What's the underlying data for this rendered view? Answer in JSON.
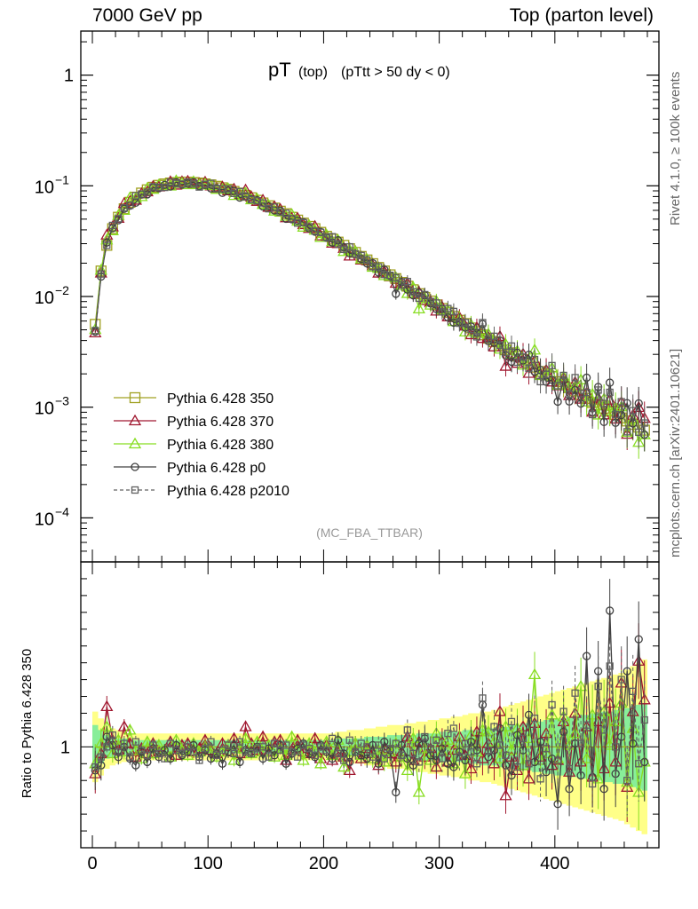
{
  "header": {
    "left": "7000 GeV pp",
    "right": "Top (parton level)"
  },
  "side_labels": {
    "rivet": "Rivet 4.1.0, ≥ 100k events",
    "mcplots": "mcplots.cern.ch [arXiv:2401.10621]"
  },
  "colors": {
    "p350": "#a0a020",
    "p370": "#a01830",
    "p380": "#88dd22",
    "p0": "#404040",
    "p2010": "#606060",
    "band_outer": "#ffff88",
    "band_inner": "#88ee99"
  },
  "chart_data": [
    {
      "type": "line",
      "title": "pT (top) (pTtt > 50 dy < 0)",
      "title_main": "pT",
      "title_sub": "(top)",
      "title_cut": "(pTtt > 50 dy < 0)",
      "watermark": "(MC_FBA_TTBAR)",
      "yscale": "log",
      "xlim": [
        -10,
        490
      ],
      "ylim": [
        4e-05,
        2.5
      ],
      "y_ticks": [
        {
          "value": 1,
          "label": "1"
        },
        {
          "value": 0.1,
          "base": "10",
          "exp": "−1"
        },
        {
          "value": 0.01,
          "base": "10",
          "exp": "−2"
        },
        {
          "value": 0.001,
          "base": "10",
          "exp": "−3"
        },
        {
          "value": 0.0001,
          "base": "10",
          "exp": "−4"
        }
      ],
      "x_ticks": [
        0,
        100,
        200,
        300,
        400
      ],
      "legend_location": "center-left",
      "series": [
        {
          "name": "Pythia 6.428 350",
          "key": "p350",
          "marker": "square-open",
          "line": "solid"
        },
        {
          "name": "Pythia 6.428 370",
          "key": "p370",
          "marker": "triangle-open",
          "line": "solid"
        },
        {
          "name": "Pythia 6.428 380",
          "key": "p380",
          "marker": "triangle-open",
          "line": "solid"
        },
        {
          "name": "Pythia 6.428 p0",
          "key": "p0",
          "marker": "circle-open",
          "line": "solid"
        },
        {
          "name": "Pythia 6.428 p2010",
          "key": "p2010",
          "marker": "square-small-open",
          "line": "dashed"
        }
      ],
      "x": [
        2.5,
        7.5,
        12.5,
        17.5,
        22.5,
        27.5,
        32.5,
        37.5,
        42.5,
        47.5,
        52.5,
        57.5,
        62.5,
        67.5,
        72.5,
        77.5,
        82.5,
        87.5,
        92.5,
        97.5,
        102.5,
        107.5,
        112.5,
        117.5,
        122.5,
        127.5,
        132.5,
        137.5,
        142.5,
        147.5,
        152.5,
        157.5,
        162.5,
        167.5,
        172.5,
        177.5,
        182.5,
        187.5,
        192.5,
        197.5,
        202.5,
        207.5,
        212.5,
        217.5,
        222.5,
        227.5,
        232.5,
        237.5,
        242.5,
        247.5,
        252.5,
        257.5,
        262.5,
        267.5,
        272.5,
        277.5,
        282.5,
        287.5,
        292.5,
        297.5,
        302.5,
        307.5,
        312.5,
        317.5,
        322.5,
        327.5,
        332.5,
        337.5,
        342.5,
        347.5,
        352.5,
        357.5,
        362.5,
        367.5,
        372.5,
        377.5,
        382.5,
        387.5,
        392.5,
        397.5,
        402.5,
        407.5,
        412.5,
        417.5,
        422.5,
        427.5,
        432.5,
        437.5,
        442.5,
        447.5,
        452.5,
        457.5,
        462.5,
        467.5,
        472.5,
        477.5
      ],
      "ref_values": [
        0.0056,
        0.017,
        0.029,
        0.041,
        0.052,
        0.062,
        0.071,
        0.079,
        0.086,
        0.092,
        0.097,
        0.101,
        0.104,
        0.106,
        0.107,
        0.108,
        0.108,
        0.107,
        0.106,
        0.104,
        0.102,
        0.099,
        0.096,
        0.093,
        0.089,
        0.086,
        0.082,
        0.078,
        0.074,
        0.07,
        0.066,
        0.063,
        0.059,
        0.056,
        0.052,
        0.049,
        0.046,
        0.043,
        0.041,
        0.038,
        0.035,
        0.033,
        0.031,
        0.029,
        0.027,
        0.025,
        0.023,
        0.0214,
        0.0198,
        0.0183,
        0.017,
        0.0157,
        0.0145,
        0.0134,
        0.0124,
        0.0115,
        0.0106,
        0.0098,
        0.0091,
        0.0084,
        0.0078,
        0.0072,
        0.0066,
        0.0061,
        0.0057,
        0.0052,
        0.0048,
        0.0045,
        0.0042,
        0.0039,
        0.0036,
        0.0033,
        0.0031,
        0.0029,
        0.0027,
        0.0025,
        0.0023,
        0.0021,
        0.002,
        0.0019,
        0.0017,
        0.0016,
        0.0015,
        0.0014,
        0.0013,
        0.0012,
        0.0011,
        0.00105,
        0.00098,
        0.00092,
        0.00086,
        0.0008,
        0.00075,
        0.0007,
        0.00066,
        0.00062
      ]
    },
    {
      "type": "line",
      "ylabel": "Ratio to Pythia 6.428 350",
      "xlim": [
        -10,
        490
      ],
      "ylim": [
        0.4,
        2.1
      ],
      "y_ticks": [
        {
          "value": 1,
          "label": "1"
        }
      ],
      "x_ticks": [
        0,
        100,
        200,
        300,
        400
      ],
      "series": [
        {
          "name": "Pythia 6.428 350",
          "key": "p350",
          "ratio": [
            1,
            1,
            1,
            1,
            1,
            1,
            1,
            1,
            1,
            1,
            1,
            1,
            1,
            1,
            1,
            1,
            1,
            1,
            1,
            1,
            1,
            1,
            1,
            1,
            1,
            1,
            1,
            1,
            1,
            1,
            1,
            1,
            1,
            1,
            1,
            1,
            1,
            1,
            1,
            1,
            1,
            1,
            1,
            1,
            1,
            1,
            1,
            1,
            1,
            1,
            1,
            1,
            1,
            1,
            1,
            1,
            1,
            1,
            1,
            1,
            1,
            1,
            1,
            1,
            1,
            1,
            1,
            1,
            1,
            1,
            1,
            1,
            1,
            1,
            1,
            1,
            1,
            1,
            1,
            1,
            1,
            1,
            1,
            1,
            1,
            1,
            1,
            1,
            1,
            1,
            1,
            1,
            1,
            1,
            1,
            1
          ],
          "band_outer": [
            0.21,
            0.17,
            0.13,
            0.11,
            0.1,
            0.09,
            0.08,
            0.08,
            0.08,
            0.08,
            0.08,
            0.08,
            0.08,
            0.08,
            0.08,
            0.08,
            0.08,
            0.08,
            0.08,
            0.08,
            0.08,
            0.08,
            0.08,
            0.08,
            0.08,
            0.08,
            0.08,
            0.08,
            0.08,
            0.08,
            0.08,
            0.08,
            0.08,
            0.08,
            0.08,
            0.08,
            0.08,
            0.08,
            0.08,
            0.08,
            0.08,
            0.08,
            0.09,
            0.09,
            0.1,
            0.1,
            0.1,
            0.11,
            0.11,
            0.12,
            0.12,
            0.13,
            0.13,
            0.13,
            0.14,
            0.14,
            0.15,
            0.15,
            0.16,
            0.16,
            0.17,
            0.17,
            0.18,
            0.18,
            0.19,
            0.2,
            0.2,
            0.21,
            0.21,
            0.22,
            0.23,
            0.24,
            0.25,
            0.26,
            0.27,
            0.28,
            0.29,
            0.3,
            0.31,
            0.32,
            0.33,
            0.34,
            0.35,
            0.36,
            0.37,
            0.38,
            0.39,
            0.4,
            0.41,
            0.42,
            0.43,
            0.44,
            0.46,
            0.48,
            0.5,
            0.52
          ],
          "band_inner": [
            0.13,
            0.1,
            0.07,
            0.06,
            0.05,
            0.05,
            0.04,
            0.04,
            0.04,
            0.04,
            0.04,
            0.04,
            0.04,
            0.04,
            0.04,
            0.04,
            0.04,
            0.04,
            0.04,
            0.04,
            0.04,
            0.04,
            0.04,
            0.04,
            0.04,
            0.04,
            0.04,
            0.04,
            0.04,
            0.04,
            0.04,
            0.04,
            0.04,
            0.04,
            0.04,
            0.04,
            0.04,
            0.04,
            0.04,
            0.04,
            0.04,
            0.04,
            0.05,
            0.05,
            0.05,
            0.05,
            0.05,
            0.06,
            0.06,
            0.06,
            0.06,
            0.07,
            0.07,
            0.07,
            0.07,
            0.07,
            0.08,
            0.08,
            0.08,
            0.08,
            0.09,
            0.09,
            0.09,
            0.09,
            0.1,
            0.1,
            0.1,
            0.11,
            0.11,
            0.11,
            0.12,
            0.12,
            0.13,
            0.13,
            0.14,
            0.14,
            0.15,
            0.15,
            0.16,
            0.16,
            0.17,
            0.17,
            0.18,
            0.18,
            0.19,
            0.19,
            0.2,
            0.2,
            0.21,
            0.21,
            0.22,
            0.22,
            0.23,
            0.24,
            0.25,
            0.26
          ]
        },
        {
          "name": "Pythia 6.428 370",
          "key": "p370",
          "ratio": [
            0.84,
            0.96,
            1.24,
            1.04,
            0.98,
            1.12,
            1.02,
            0.94,
            0.99,
            0.96,
            1.02,
            0.97,
            0.98,
            1.03,
            0.95,
            1.01,
            1.02,
            0.97,
            0.99,
            1.04,
            0.98,
            0.96,
            1.02,
            0.97,
            1.05,
            0.96,
            1.12,
            1.02,
            0.98,
            1.06,
            0.97,
            1.03,
            1.04,
            0.92,
            0.98,
            1.04,
            0.97,
            0.96,
            1.05,
            0.93,
            1.01,
            0.92,
            0.97,
            0.94,
            0.86,
            1.02,
            0.93,
            0.99,
            0.96,
            0.89,
            0.99,
            0.96,
            0.91,
            0.97,
            1.06,
            0.92,
            1.03,
            0.94,
            0.99,
            0.88,
            1.03,
            0.91,
            0.98,
            1.06,
            0.95,
            0.87,
            1.09,
            0.93,
            1.02,
            0.9,
            1.21,
            0.71,
            0.94,
            0.86,
            1.12,
            0.81,
            1.14,
            0.94,
            1.08,
            0.89,
            0.92,
            1.15,
            0.85,
            1.2,
            0.91,
            1.12,
            0.82,
            1.15,
            0.87,
            1.26,
            0.91,
            1.38,
            0.76,
            1.21,
            1.51,
            1.28
          ]
        },
        {
          "name": "Pythia 6.428 380",
          "key": "p380",
          "ratio": [
            0.9,
            1.02,
            1.12,
            0.96,
            1.04,
            0.97,
            1.1,
            0.98,
            0.93,
            1.03,
            0.96,
            1.01,
            0.98,
            0.94,
            1.04,
            0.98,
            0.95,
            1.02,
            0.97,
            1.0,
            0.99,
            0.94,
            0.97,
            1.01,
            0.92,
            0.99,
            1.05,
            0.96,
            1.03,
            0.97,
            1.01,
            0.94,
            0.99,
            0.95,
            1.06,
            0.98,
            0.92,
            1.02,
            0.97,
            0.9,
            1.03,
            0.95,
            1.04,
            0.88,
            0.97,
            1.02,
            0.95,
            1.01,
            0.93,
            0.98,
            0.91,
            0.97,
            1.02,
            0.94,
            0.86,
            1.05,
            0.73,
            0.99,
            0.92,
            1.08,
            0.97,
            1.04,
            0.9,
            1.02,
            0.84,
            1.07,
            0.97,
            1.1,
            1.09,
            1.03,
            0.93,
            1.12,
            0.98,
            1.11,
            0.89,
            1.05,
            1.43,
            0.92,
            0.96,
            1.19,
            0.93,
            1.18,
            1.01,
            1.08,
            1.36,
            0.93,
            1.19,
            0.81,
            1.21,
            1.01,
            1.15,
            1.26,
            0.79,
            1.11,
            0.73,
            0.91
          ]
        },
        {
          "name": "Pythia 6.428 p0",
          "key": "p0",
          "ratio": [
            0.86,
            0.89,
            1.06,
            1.01,
            0.94,
            1.0,
            0.93,
            0.89,
            0.97,
            0.91,
            0.99,
            0.94,
            0.98,
            0.93,
            1.01,
            0.95,
            0.97,
            1.01,
            0.94,
            0.98,
            0.93,
            0.96,
            0.9,
            0.97,
            1.01,
            0.91,
            0.98,
            0.97,
            1.0,
            0.93,
            0.99,
            0.95,
            1.01,
            0.9,
            0.96,
            0.99,
            1.02,
            0.96,
            0.94,
            1.01,
            0.97,
            0.93,
            1.04,
            0.96,
            0.91,
            0.97,
            0.95,
            0.93,
            1.01,
            0.9,
            1.03,
            0.98,
            0.73,
            1.01,
            0.93,
            0.89,
            1.02,
            1.05,
            0.95,
            0.92,
            0.99,
            0.9,
            0.88,
            0.97,
            0.92,
            1.03,
            0.98,
            1.25,
            0.94,
            0.98,
            1.11,
            0.89,
            0.83,
            1.07,
            0.98,
            1.19,
            0.91,
            1.03,
            0.85,
            0.93,
            0.66,
            1.09,
            0.75,
            1.02,
            0.83,
            1.54,
            0.82,
            1.45,
            0.75,
            1.81,
            0.84,
            1.06,
            1.45,
            1.02,
            1.64,
            0.91
          ]
        },
        {
          "name": "Pythia 6.428 p2010",
          "key": "p2010",
          "ratio": [
            0.88,
            0.94,
            1.0,
            1.07,
            0.97,
            1.02,
            0.94,
            1.03,
            0.98,
            0.95,
            1.01,
            0.96,
            0.93,
            1.02,
            0.98,
            0.96,
            1.0,
            0.97,
            0.92,
            0.99,
            1.03,
            0.95,
            0.98,
            1.01,
            0.96,
            1.03,
            0.97,
            0.96,
            0.99,
            1.0,
            0.94,
            1.02,
            0.98,
            1.01,
            0.97,
            0.94,
            1.01,
            0.99,
            0.95,
            1.0,
            0.98,
            1.05,
            0.96,
            0.92,
            1.04,
            0.97,
            1.02,
            1.0,
            0.94,
            1.01,
            0.93,
            0.99,
            1.02,
            0.95,
            1.1,
            0.96,
            0.91,
            1.06,
            0.99,
            1.04,
            0.93,
            1.08,
            1.11,
            0.94,
            1.02,
            0.97,
            0.9,
            1.29,
            0.98,
            1.12,
            1.01,
            0.95,
            1.15,
            0.88,
            1.05,
            0.9,
            1.17,
            0.81,
            0.99,
            1.25,
            0.92,
            1.21,
            0.87,
            1.32,
            1.02,
            1.13,
            0.78,
            1.36,
            1.1,
            1.48,
            1.0,
            1.4,
            0.8,
            1.33,
            0.9,
            1.16
          ]
        }
      ]
    }
  ]
}
